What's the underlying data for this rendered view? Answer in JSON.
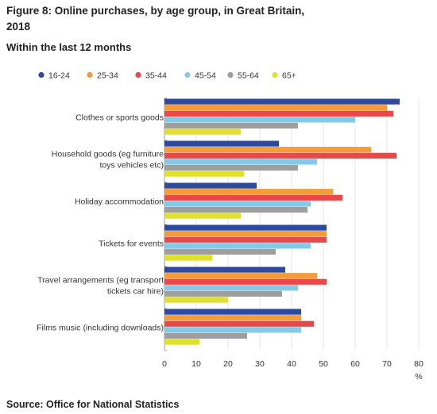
{
  "title": "Figure 8: Online purchases, by age group, in Great Britain, 2018",
  "subtitle": "Within the last 12 months",
  "source": "Source: Office for National Statistics",
  "chart_data": {
    "type": "bar",
    "orientation": "horizontal",
    "categories": [
      "Clothes or sports goods",
      "Household goods (eg furniture toys vehicles etc)",
      "Holiday accommodation",
      "Tickets for events",
      "Travel arrangements (eg transport tickets car hire)",
      "Films music (including downloads)"
    ],
    "series": [
      {
        "name": "16-24",
        "color": "#2d4a9e",
        "values": [
          74,
          36,
          29,
          51,
          38,
          43
        ]
      },
      {
        "name": "25-34",
        "color": "#f79a3a",
        "values": [
          70,
          65,
          53,
          51,
          48,
          43
        ]
      },
      {
        "name": "35-44",
        "color": "#e84848",
        "values": [
          72,
          73,
          56,
          51,
          51,
          47
        ]
      },
      {
        "name": "45-54",
        "color": "#85c9e8",
        "values": [
          60,
          48,
          46,
          46,
          42,
          43
        ]
      },
      {
        "name": "55-64",
        "color": "#9e9e9e",
        "values": [
          42,
          42,
          45,
          35,
          37,
          26
        ]
      },
      {
        "name": "65+",
        "color": "#e2e02e",
        "values": [
          24,
          25,
          24,
          15,
          20,
          11
        ]
      }
    ],
    "x_ticks": [
      0,
      10,
      20,
      30,
      40,
      50,
      60,
      70,
      80
    ],
    "xlim": [
      0,
      80
    ],
    "xlabel": "%",
    "legend_position": "top",
    "grid": true
  }
}
